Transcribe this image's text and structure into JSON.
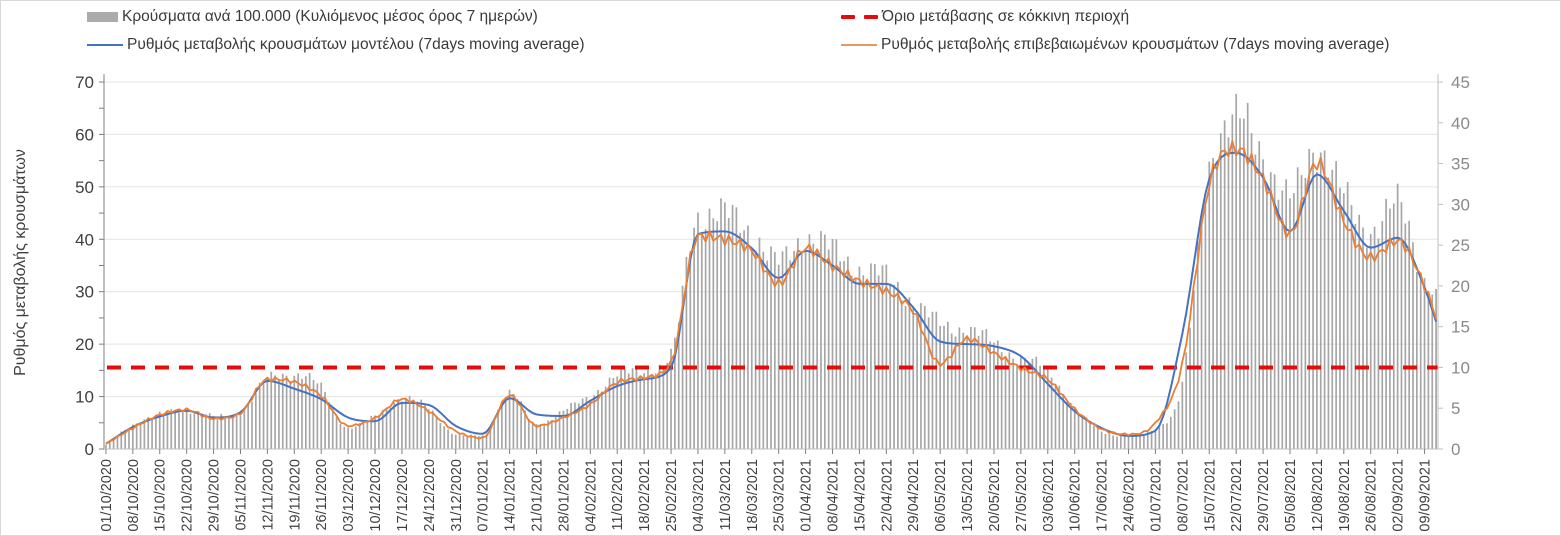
{
  "legend": {
    "items": [
      {
        "label": "Κρούσματα ανά 100.000 (Κυλιόμενος μέσος όρος 7 ημερών)",
        "marker": "bar",
        "color": "#ababab"
      },
      {
        "label": "Όριο μετάβασης σε κόκκινη περιοχή",
        "marker": "dashed-line",
        "color": "#e60b0b"
      },
      {
        "label": "Ρυθμός μεταβολής κρουσμάτων μοντέλου (7days moving average)",
        "marker": "line",
        "color": "#4472c4"
      },
      {
        "label": "Ρυθμός μεταβολής επιβεβαιωμένων κρουσμάτων (7days moving average)",
        "marker": "line",
        "color": "#ed7d31"
      }
    ]
  },
  "chart_data": {
    "type": "combo-bar-line",
    "grid": {
      "horizontal": true,
      "color": "#e3e3e3",
      "interval_left_axis": 10
    },
    "y_left": {
      "label": "Ρυθμός μεταβολής κρουσμάτων",
      "min": 0,
      "max": 70,
      "ticks": [
        "0",
        "10",
        "20",
        "30",
        "40",
        "50",
        "60",
        "70"
      ],
      "tick_color": "#3f3f3f"
    },
    "y_right": {
      "min": 0,
      "max": 45,
      "ticks": [
        "0",
        "5",
        "10",
        "15",
        "20",
        "25",
        "30",
        "35",
        "40",
        "45"
      ],
      "tick_color": "#8a8a8a"
    },
    "threshold": {
      "name": "Όριο μετάβασης σε κόκκινη περιοχή",
      "axis": "right",
      "value": 10,
      "color": "#e60b0b",
      "style": "dashed"
    },
    "x_tick_labels": [
      "01/10/2020",
      "08/10/2020",
      "15/10/2020",
      "22/10/2020",
      "29/10/2020",
      "05/11/2020",
      "12/11/2020",
      "19/11/2020",
      "26/11/2020",
      "03/12/2020",
      "10/12/2020",
      "17/12/2020",
      "24/12/2020",
      "31/12/2020",
      "07/01/2021",
      "14/01/2021",
      "21/01/2021",
      "28/01/2021",
      "04/02/2021",
      "11/02/2021",
      "18/02/2021",
      "25/02/2021",
      "04/03/2021",
      "11/03/2021",
      "18/03/2021",
      "25/03/2021",
      "01/04/2021",
      "08/04/2021",
      "15/04/2021",
      "22/04/2021",
      "29/04/2021",
      "06/05/2021",
      "13/05/2021",
      "20/05/2021",
      "27/05/2021",
      "03/06/2021",
      "10/06/2021",
      "17/06/2021",
      "24/06/2021",
      "01/07/2021",
      "08/07/2021",
      "15/07/2021",
      "22/07/2021",
      "29/07/2021",
      "05/08/2021",
      "12/08/2021",
      "19/08/2021",
      "26/08/2021",
      "02/09/2021",
      "09/09/2021"
    ],
    "series": [
      {
        "name": "Κρούσματα ανά 100.000 (Κυλιόμενος μέσος όρος 7 ημερών)",
        "type": "bar",
        "axis": "right",
        "color": "#a6a6a6",
        "weekly_values": [
          0.5,
          3.0,
          4.2,
          4.8,
          4.0,
          4.5,
          8.5,
          9.2,
          7.5,
          2.6,
          4.0,
          6.2,
          5.0,
          1.8,
          1.6,
          6.9,
          3.0,
          4.7,
          6.5,
          9.0,
          9.6,
          11.4,
          28.8,
          28.6,
          26.7,
          22.7,
          26.1,
          24.3,
          22.2,
          21.0,
          18.1,
          15.3,
          14.7,
          13.0,
          11.0,
          9.6,
          5.0,
          2.2,
          1.6,
          2.6,
          8.0,
          34.9,
          40.2,
          36.5,
          30.4,
          37.5,
          30.8,
          27.1,
          29.8,
          21.0
        ],
        "tail_value": 18.5
      },
      {
        "name": "Ρυθμός μεταβολής κρουσμάτων μοντέλου (7days moving average)",
        "type": "line",
        "axis": "left",
        "color": "#4472c4",
        "weekly_values": [
          1.0,
          4.2,
          6.2,
          7.3,
          6.0,
          7.0,
          13.0,
          11.5,
          9.5,
          6.0,
          5.3,
          8.8,
          8.4,
          4.4,
          2.9,
          9.7,
          6.6,
          6.3,
          9.2,
          12.0,
          13.3,
          15.5,
          41.0,
          41.5,
          38.3,
          32.6,
          37.8,
          35.0,
          31.5,
          31.5,
          27.0,
          20.5,
          20.0,
          19.6,
          17.7,
          12.4,
          7.2,
          4.0,
          2.5,
          3.5,
          22.0,
          51.5,
          56.5,
          51.8,
          41.5,
          52.4,
          45.4,
          38.4,
          40.3,
          30.8
        ],
        "tail_value": 24.3
      },
      {
        "name": "Ρυθμός μεταβολής επιβεβαιωμένων κρουσμάτων (7days moving average)",
        "type": "line",
        "axis": "left",
        "color": "#ed7d31",
        "weekly_values": [
          1.0,
          4.0,
          6.5,
          7.5,
          5.8,
          6.8,
          13.3,
          12.8,
          10.1,
          4.4,
          5.9,
          9.5,
          7.2,
          3.4,
          2.1,
          10.3,
          4.4,
          6.0,
          8.5,
          12.7,
          13.6,
          16.5,
          40.6,
          40.0,
          37.8,
          31.5,
          38.3,
          34.9,
          32.0,
          30.1,
          26.3,
          16.2,
          21.0,
          18.3,
          15.4,
          13.3,
          7.6,
          3.8,
          2.8,
          5.0,
          16.2,
          50.5,
          57.2,
          51.5,
          41.0,
          54.6,
          43.5,
          36.5,
          39.7,
          31.1
        ],
        "tail_value": 25.2
      }
    ]
  }
}
